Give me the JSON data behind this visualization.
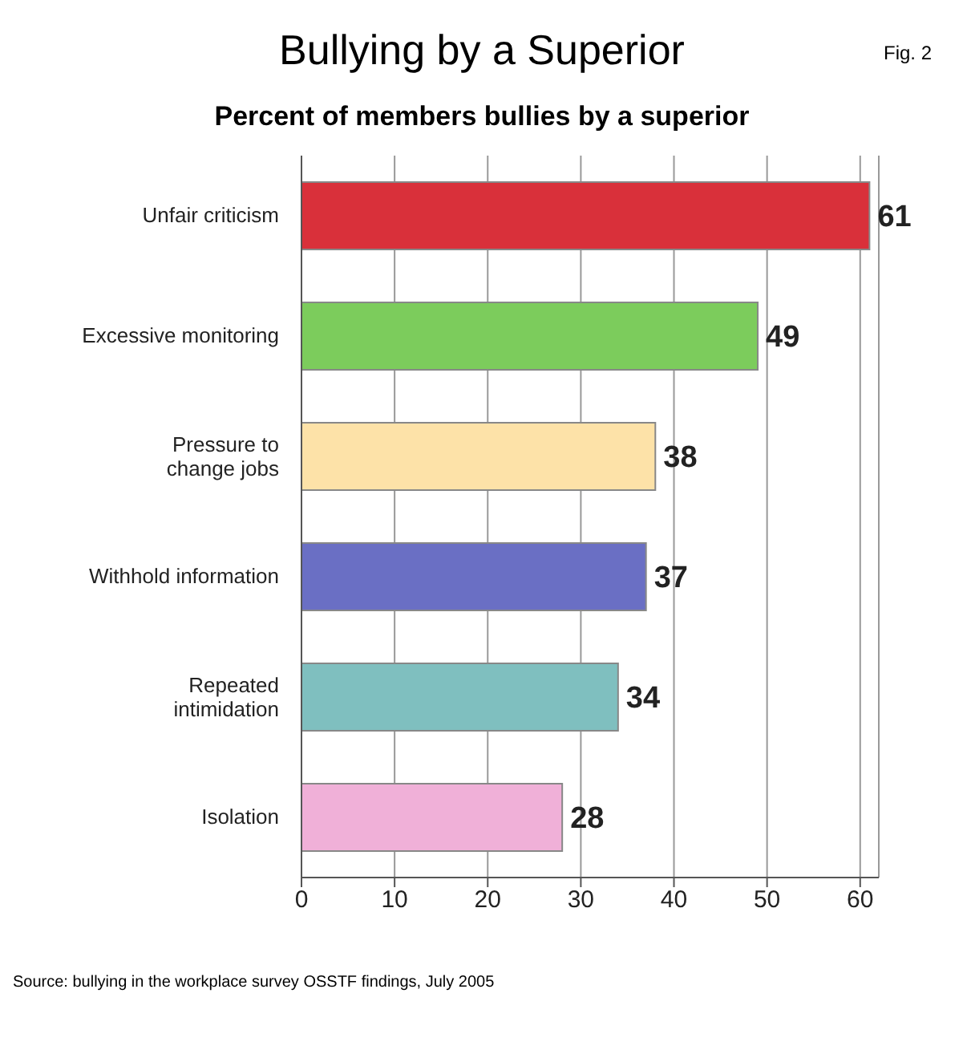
{
  "chart_data": {
    "type": "bar",
    "orientation": "horizontal",
    "title": "Bullying by a Superior",
    "subtitle": "Percent of members bullies by a superior",
    "categories": [
      "Unfair criticism",
      "Excessive monitoring",
      "Pressure to change jobs",
      "Withhold information",
      "Repeated intimidation",
      "Isolation"
    ],
    "values": [
      61,
      49,
      38,
      37,
      34,
      28
    ],
    "colors": [
      "#d9303a",
      "#7ccc5c",
      "#fde2a8",
      "#6a6fc4",
      "#7fbfbf",
      "#f0b0d8"
    ],
    "xlim": [
      0,
      62
    ],
    "xticks": [
      0,
      10,
      20,
      30,
      40,
      50,
      60
    ],
    "grid": "x",
    "data_labels": true,
    "annotations": [
      "Fig. 2",
      "Source: bullying in the workplace survey OSSTF findings, July 2005"
    ]
  }
}
